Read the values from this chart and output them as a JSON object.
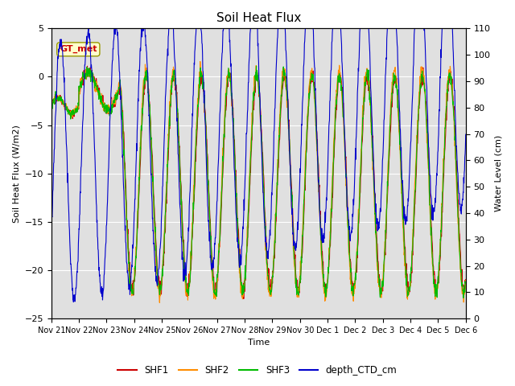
{
  "title": "Soil Heat Flux",
  "xlabel": "Time",
  "ylabel_left": "Soil Heat Flux (W/m2)",
  "ylabel_right": "Water Level (cm)",
  "ylim_left": [
    -25,
    5
  ],
  "ylim_right": [
    0,
    110
  ],
  "yticks_left": [
    -25,
    -20,
    -15,
    -10,
    -5,
    0,
    5
  ],
  "yticks_right": [
    0,
    10,
    20,
    30,
    40,
    50,
    60,
    70,
    80,
    90,
    100,
    110
  ],
  "xtick_labels": [
    "Nov 21",
    "Nov 22",
    "Nov 23",
    "Nov 24",
    "Nov 25",
    "Nov 26",
    "Nov 27",
    "Nov 28",
    "Nov 29",
    "Nov 30",
    "Dec 1",
    "Dec 2",
    "Dec 3",
    "Dec 4",
    "Dec 5",
    "Dec 6"
  ],
  "colors": {
    "SHF1": "#cc0000",
    "SHF2": "#ff8c00",
    "SHF3": "#00bb00",
    "depth_CTD_cm": "#0000cc"
  },
  "annotation_text": "GT_met",
  "annotation_color": "#cc0000",
  "annotation_bg": "#ffffcc",
  "background_color": "#e0e0e0",
  "grid_color": "#ffffff",
  "figsize": [
    6.4,
    4.8
  ],
  "dpi": 100
}
